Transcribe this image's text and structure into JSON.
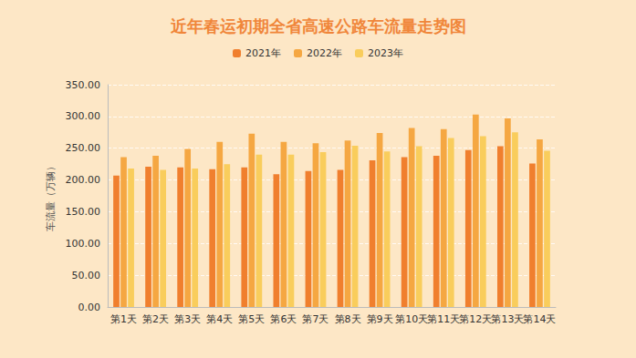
{
  "chart_data": {
    "type": "bar",
    "title": "近年春运初期全省高速公路车流量走势图",
    "y_label": "车流量（万辆）",
    "categories": [
      "第1天",
      "第2天",
      "第3天",
      "第4天",
      "第5天",
      "第6天",
      "第7天",
      "第8天",
      "第9天",
      "第10天",
      "第11天",
      "第12天",
      "第13天",
      "第14天"
    ],
    "series": [
      {
        "name": "2021年",
        "color": "#f07f2e",
        "values": [
          207,
          221,
          220,
          217,
          220,
          209,
          214,
          216,
          231,
          236,
          238,
          247,
          253,
          226
        ]
      },
      {
        "name": "2022年",
        "color": "#f5a742",
        "values": [
          236,
          238,
          249,
          260,
          273,
          260,
          258,
          262,
          274,
          282,
          280,
          303,
          297,
          264
        ]
      },
      {
        "name": "2023年",
        "color": "#f9cd5c",
        "values": [
          218,
          216,
          218,
          225,
          240,
          240,
          244,
          254,
          245,
          253,
          266,
          269,
          275,
          246
        ]
      }
    ],
    "ylim": [
      0,
      350
    ],
    "yticks": [
      {
        "value": 0,
        "label": "0.00"
      },
      {
        "value": 50,
        "label": "50.00"
      },
      {
        "value": 100,
        "label": "100.00"
      },
      {
        "value": 150,
        "label": "150.00"
      },
      {
        "value": 200,
        "label": "200.00"
      },
      {
        "value": 250,
        "label": "250.00"
      },
      {
        "value": 300,
        "label": "300.00"
      },
      {
        "value": 350,
        "label": "350.00"
      }
    ],
    "grid": true,
    "legend": "top"
  }
}
